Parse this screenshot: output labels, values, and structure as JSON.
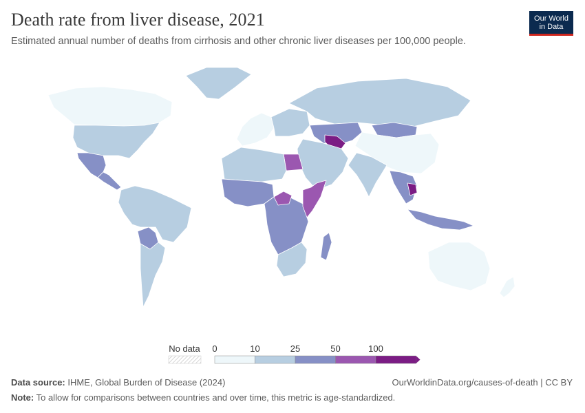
{
  "header": {
    "title": "Death rate from liver disease, 2021",
    "subtitle": "Estimated annual number of deaths from cirrhosis and other chronic liver diseases per 100,000 people.",
    "logo_line1": "Our World",
    "logo_line2": "in Data"
  },
  "legend": {
    "no_data_label": "No data",
    "bins": [
      {
        "label": "0",
        "color": "#eef7fa"
      },
      {
        "label": "10",
        "color": "#b7cee1"
      },
      {
        "label": "25",
        "color": "#8690c6"
      },
      {
        "label": "50",
        "color": "#9b57b0"
      },
      {
        "label": "100",
        "color": "#7b1c84"
      }
    ]
  },
  "map_regions": [
    {
      "name": "Canada",
      "bin": 0
    },
    {
      "name": "United States",
      "bin": 1
    },
    {
      "name": "Mexico",
      "bin": 2
    },
    {
      "name": "Central America",
      "bin": 2
    },
    {
      "name": "South America North",
      "bin": 1
    },
    {
      "name": "Bolivia",
      "bin": 2
    },
    {
      "name": "South America South",
      "bin": 1
    },
    {
      "name": "Greenland",
      "bin": 1
    },
    {
      "name": "Western Europe",
      "bin": 0
    },
    {
      "name": "Eastern Europe",
      "bin": 1
    },
    {
      "name": "Russia",
      "bin": 1
    },
    {
      "name": "Central Asia",
      "bin": 2
    },
    {
      "name": "Turkmenistan",
      "bin": 4
    },
    {
      "name": "Mongolia",
      "bin": 2
    },
    {
      "name": "China",
      "bin": 0
    },
    {
      "name": "India",
      "bin": 1
    },
    {
      "name": "Middle East",
      "bin": 1
    },
    {
      "name": "Egypt",
      "bin": 3
    },
    {
      "name": "North Africa",
      "bin": 1
    },
    {
      "name": "West Africa",
      "bin": 2
    },
    {
      "name": "Central Africa",
      "bin": 2
    },
    {
      "name": "South Sudan",
      "bin": 3
    },
    {
      "name": "Somalia",
      "bin": 3
    },
    {
      "name": "Southern Africa",
      "bin": 1
    },
    {
      "name": "Madagascar",
      "bin": 2
    },
    {
      "name": "Southeast Asia",
      "bin": 2
    },
    {
      "name": "Cambodia",
      "bin": 4
    },
    {
      "name": "Indonesia",
      "bin": 2
    },
    {
      "name": "Australia",
      "bin": 0
    },
    {
      "name": "New Zealand",
      "bin": 0
    }
  ],
  "footer": {
    "source_label": "Data source:",
    "source_text": "IHME, Global Burden of Disease (2024)",
    "url_text": "OurWorldinData.org/causes-of-death | CC BY",
    "note_label": "Note:",
    "note_text": "To allow for comparisons between countries and over time, this metric is age-standardized."
  }
}
